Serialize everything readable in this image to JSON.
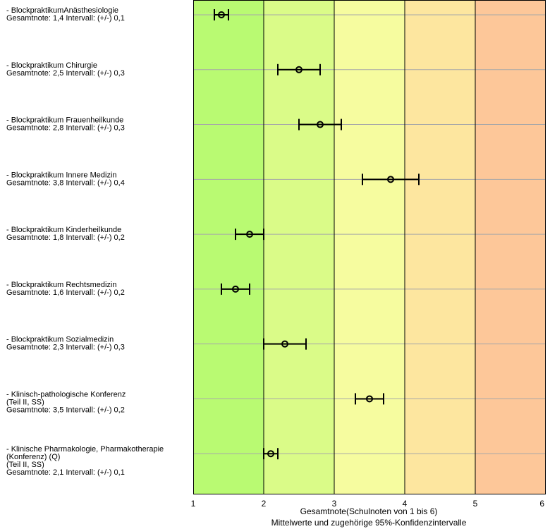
{
  "chart_data": {
    "type": "scatter",
    "orientation": "horizontal",
    "xlim": [
      1,
      6
    ],
    "x_ticks": [
      "1",
      "2",
      "3",
      "4",
      "5",
      "6"
    ],
    "xlabel": "Gesamtnote(Schulnoten von 1 bis 6)",
    "xlabel_sub": "Mittelwerte und zugehörige 95%-Konfidenzintervalle",
    "grid": true,
    "bands": [
      {
        "from": 1,
        "to": 2,
        "color": "#b9fa72"
      },
      {
        "from": 2,
        "to": 3,
        "color": "#dafb88"
      },
      {
        "from": 3,
        "to": 4,
        "color": "#f6fc9f"
      },
      {
        "from": 4,
        "to": 5,
        "color": "#fde69f"
      },
      {
        "from": 5,
        "to": 6,
        "color": "#fdc799"
      }
    ],
    "items": [
      {
        "lines": [
          "- BlockpraktikumAnästhesiologie",
          "Gesamtnote: 1,4 Intervall: (+/-) 0,1"
        ],
        "value": 1.4,
        "ci": 0.1
      },
      {
        "lines": [
          "- Blockpraktikum Chirurgie",
          "Gesamtnote: 2,5 Intervall: (+/-) 0,3"
        ],
        "value": 2.5,
        "ci": 0.3
      },
      {
        "lines": [
          "- Blockpraktikum Frauenheilkunde",
          "Gesamtnote: 2,8 Intervall: (+/-) 0,3"
        ],
        "value": 2.8,
        "ci": 0.3
      },
      {
        "lines": [
          "- Blockpraktikum Innere Medizin",
          "Gesamtnote: 3,8 Intervall: (+/-) 0,4"
        ],
        "value": 3.8,
        "ci": 0.4
      },
      {
        "lines": [
          "- Blockpraktikum Kinderheilkunde",
          "Gesamtnote: 1,8 Intervall: (+/-) 0,2"
        ],
        "value": 1.8,
        "ci": 0.2
      },
      {
        "lines": [
          "- Blockpraktikum Rechtsmedizin",
          "Gesamtnote: 1,6 Intervall: (+/-) 0,2"
        ],
        "value": 1.6,
        "ci": 0.2
      },
      {
        "lines": [
          "- Blockpraktikum Sozialmedizin",
          "Gesamtnote: 2,3 Intervall: (+/-) 0,3"
        ],
        "value": 2.3,
        "ci": 0.3
      },
      {
        "lines": [
          "- Klinisch-pathologische Konferenz",
          "(Teil II, SS)",
          "Gesamtnote: 3,5 Intervall: (+/-) 0,2"
        ],
        "value": 3.5,
        "ci": 0.2
      },
      {
        "lines": [
          "- Klinische Pharmakologie, Pharmakotherapie",
          "(Konferenz) (Q)",
          "(Teil II, SS)",
          "Gesamtnote: 2,1 Intervall: (+/-) 0,1"
        ],
        "value": 2.1,
        "ci": 0.1
      }
    ]
  }
}
